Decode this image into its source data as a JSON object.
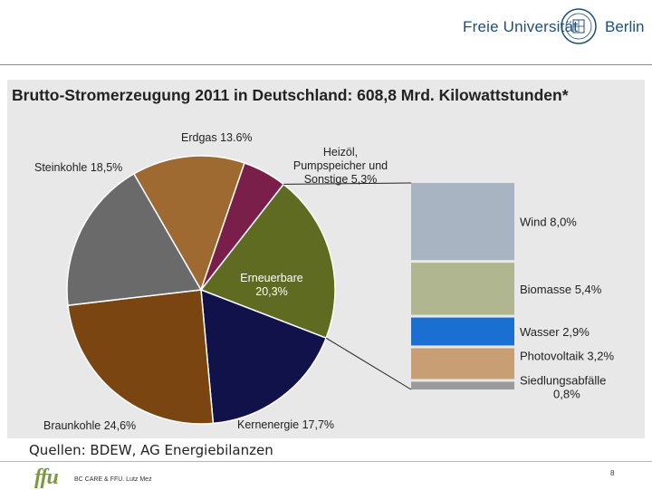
{
  "header": {
    "university": "Freie Universität",
    "city": "Berlin"
  },
  "footer": {
    "sources": "Quellen: BDEW, AG Energiebilanzen",
    "logo": "ffu",
    "credit": "BC CARE & FFU. Lutz Mez",
    "page_number": "8"
  },
  "chart_data": {
    "type": "pie",
    "title": "Brutto-Stromerzeugung 2011 in Deutschland: 608,8 Mrd. Kilowattstunden*",
    "slices": [
      {
        "label": "Erneuerbare\n20,3%",
        "value": 20.3,
        "color": "#5e6b20",
        "text_color": "#ffffff"
      },
      {
        "label": "Kernenergie 17,7%",
        "value": 17.7,
        "color": "#12124a",
        "text_color": "#222222"
      },
      {
        "label": "Braunkohle 24,6%",
        "value": 24.6,
        "color": "#7a4510",
        "text_color": "#222222"
      },
      {
        "label": "Steinkohle 18,5%",
        "value": 18.5,
        "color": "#6a6a6a",
        "text_color": "#222222"
      },
      {
        "label": "Erdgas 13.6%",
        "value": 13.6,
        "color": "#9f6a32",
        "text_color": "#222222"
      },
      {
        "label": "Heizöl,\nPumpspeicher und\nSonstige 5,3%",
        "value": 5.3,
        "color": "#7a1e4a",
        "text_color": "#222222"
      }
    ],
    "breakdown": {
      "of": "Erneuerbare",
      "segments": [
        {
          "label": "Wind 8,0%",
          "value": 8.0,
          "color": "#a9b4c2"
        },
        {
          "label": "Biomasse 5,4%",
          "value": 5.4,
          "color": "#b0b690"
        },
        {
          "label": "Wasser 2,9%",
          "value": 2.9,
          "color": "#1a6fd0"
        },
        {
          "label": "Photovoltaik 3,2%",
          "value": 3.2,
          "color": "#c89e74"
        },
        {
          "label": "Siedlungsabfälle\n0,8%",
          "value": 0.8,
          "color": "#9a9a9a"
        }
      ]
    }
  }
}
